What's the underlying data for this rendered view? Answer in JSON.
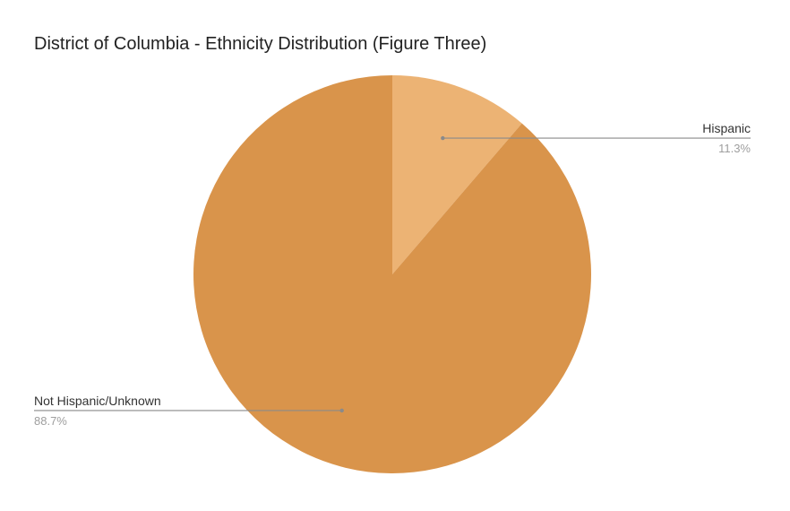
{
  "chart_data": {
    "type": "pie",
    "title": "District of Columbia - Ethnicity Distribution (Figure Three)",
    "slices": [
      {
        "label": "Hispanic",
        "value": 11.3,
        "display": "11.3%",
        "color": "#ECB374",
        "label_side": "right"
      },
      {
        "label": "Not Hispanic/Unknown",
        "value": 88.7,
        "display": "88.7%",
        "color": "#D9944B",
        "label_side": "left"
      }
    ],
    "leader_color": "#8a8a8a"
  }
}
